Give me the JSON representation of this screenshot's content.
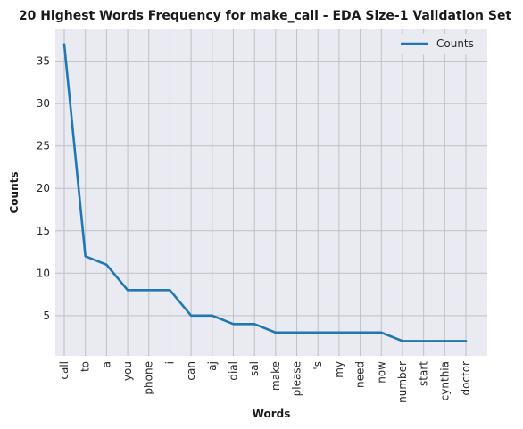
{
  "chart_data": {
    "type": "line",
    "title": "20 Highest Words Frequency for make_call - EDA Size-1 Validation Set",
    "xlabel": "Words",
    "ylabel": "Counts",
    "categories": [
      "call",
      "to",
      "a",
      "you",
      "phone",
      "i",
      "can",
      "aj",
      "dial",
      "sal",
      "make",
      "please",
      "'s",
      "my",
      "need",
      "now",
      "number",
      "start",
      "cynthia",
      "doctor"
    ],
    "series": [
      {
        "name": "Counts",
        "values": [
          37,
          12,
          11,
          8,
          8,
          8,
          5,
          5,
          4,
          4,
          3,
          3,
          3,
          3,
          3,
          3,
          2,
          2,
          2,
          2
        ],
        "color": "#1f77b4"
      }
    ],
    "ylim": [
      0.25,
      38.75
    ],
    "yticks": [
      5,
      10,
      15,
      20,
      25,
      30,
      35
    ],
    "grid": true,
    "legend_position": "top-right",
    "background": "#eaeaf2",
    "grid_color": "#c0c0c0"
  }
}
